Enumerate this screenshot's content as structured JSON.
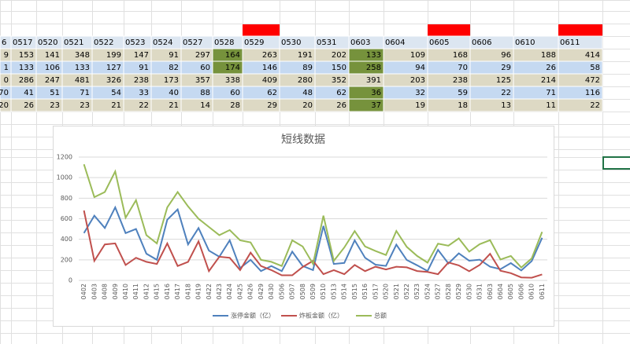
{
  "table": {
    "header": [
      "6",
      "0517",
      "0520",
      "0521",
      "0522",
      "0523",
      "0524",
      "0527",
      "0528",
      "0529",
      "0530",
      "0531",
      "0603",
      "0604",
      "0605",
      "0606",
      "0610",
      "0611"
    ],
    "rows": [
      [
        "9",
        "153",
        "141",
        "348",
        "199",
        "147",
        "91",
        "297",
        "164",
        "263",
        "191",
        "202",
        "133",
        "109",
        "168",
        "96",
        "188",
        "414"
      ],
      [
        "1",
        "133",
        "106",
        "133",
        "127",
        "91",
        "82",
        "60",
        "174",
        "146",
        "89",
        "150",
        "258",
        "94",
        "70",
        "29",
        "26",
        "58"
      ],
      [
        "0",
        "286",
        "247",
        "481",
        "326",
        "238",
        "173",
        "357",
        "338",
        "409",
        "280",
        "352",
        "391",
        "203",
        "238",
        "125",
        "214",
        "472"
      ],
      [
        "70",
        "41",
        "51",
        "71",
        "54",
        "33",
        "40",
        "88",
        "60",
        "62",
        "48",
        "62",
        "36",
        "32",
        "59",
        "22",
        "71",
        "116"
      ],
      [
        "20",
        "26",
        "23",
        "23",
        "21",
        "22",
        "21",
        "14",
        "28",
        "29",
        "20",
        "26",
        "37",
        "19",
        "18",
        "13",
        "11",
        "22"
      ]
    ]
  },
  "chart_data": {
    "type": "line",
    "title": "短线数据",
    "categories": [
      "0402",
      "0403",
      "0408",
      "0409",
      "0410",
      "0411",
      "0412",
      "0415",
      "0416",
      "0417",
      "0418",
      "0419",
      "0422",
      "0423",
      "0424",
      "0425",
      "0426",
      "0429",
      "0430",
      "0506",
      "0507",
      "0508",
      "0509",
      "0510",
      "0513",
      "0514",
      "0515",
      "0516",
      "0517",
      "0520",
      "0521",
      "0522",
      "0523",
      "0524",
      "0527",
      "0528",
      "0529",
      "0530",
      "0531",
      "0603",
      "0604",
      "0605",
      "0606",
      "0610",
      "0611"
    ],
    "series": [
      {
        "name": "涨停金额（亿）",
        "color": "#4f81bd",
        "values": [
          460,
          630,
          510,
          710,
          460,
          500,
          260,
          200,
          590,
          690,
          350,
          510,
          290,
          230,
          390,
          120,
          200,
          90,
          140,
          90,
          280,
          140,
          100,
          530,
          160,
          170,
          390,
          220,
          153,
          141,
          348,
          199,
          147,
          91,
          297,
          164,
          263,
          191,
          202,
          133,
          109,
          168,
          96,
          188,
          414
        ]
      },
      {
        "name": "炸板金额（亿）",
        "color": "#c0504d",
        "values": [
          680,
          190,
          350,
          360,
          150,
          220,
          180,
          160,
          360,
          140,
          180,
          380,
          90,
          230,
          220,
          100,
          270,
          140,
          100,
          50,
          50,
          130,
          190,
          60,
          100,
          60,
          150,
          90,
          133,
          106,
          133,
          127,
          91,
          82,
          60,
          174,
          146,
          89,
          150,
          258,
          94,
          70,
          29,
          26,
          58
        ]
      },
      {
        "name": "总额",
        "color": "#9bbb59",
        "values": [
          1130,
          810,
          860,
          1060,
          610,
          780,
          440,
          360,
          710,
          860,
          720,
          600,
          520,
          440,
          490,
          390,
          370,
          200,
          180,
          140,
          390,
          330,
          160,
          630,
          190,
          320,
          480,
          330,
          286,
          247,
          481,
          326,
          238,
          173,
          357,
          338,
          409,
          280,
          352,
          391,
          203,
          238,
          125,
          214,
          472
        ]
      }
    ],
    "ylim": [
      0,
      1200
    ],
    "yticks": [
      0,
      200,
      400,
      600,
      800,
      1000,
      1200
    ],
    "grid": true,
    "legend": "bottom"
  }
}
